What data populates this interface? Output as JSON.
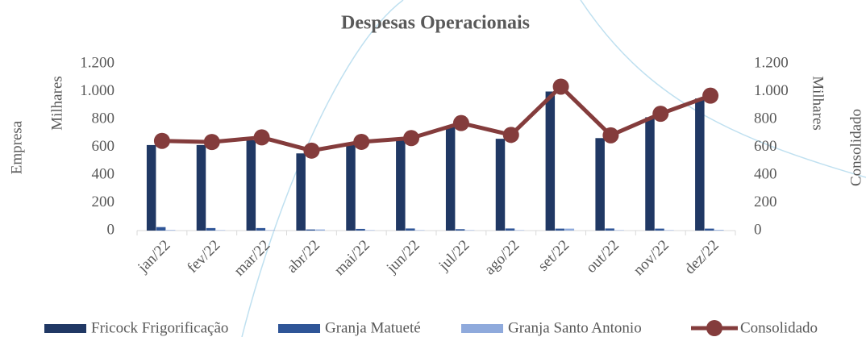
{
  "chart_data": {
    "type": "bar",
    "title": "Despesas Operacionais",
    "y_label": "Empresa",
    "y_unit": "Milhares",
    "y2_label": "Consolidado",
    "y2_unit": "Milhares",
    "categories": [
      "jan/22",
      "fev/22",
      "mar/22",
      "abr/22",
      "mai/22",
      "jun/22",
      "jul/22",
      "ago/22",
      "set/22",
      "out/22",
      "nov/22",
      "dez/22"
    ],
    "series": [
      {
        "name": "Fricock Frigorificação",
        "type": "bar",
        "color": "#203864",
        "values": [
          615,
          615,
          650,
          555,
          630,
          650,
          745,
          660,
          1000,
          665,
          815,
          950
        ]
      },
      {
        "name": "Granja Matueté",
        "type": "bar",
        "color": "#2f5597",
        "values": [
          25,
          18,
          18,
          8,
          12,
          15,
          10,
          15,
          14,
          15,
          14,
          14
        ]
      },
      {
        "name": "Granja Santo Antonio",
        "type": "bar",
        "color": "#8faadc",
        "values": [
          4,
          3,
          3,
          8,
          3,
          3,
          3,
          3,
          14,
          3,
          3,
          5
        ]
      },
      {
        "name": "Consolidado",
        "type": "line",
        "axis": "y2",
        "color": "#843c3c",
        "values": [
          645,
          637,
          670,
          575,
          638,
          665,
          773,
          688,
          1035,
          685,
          840,
          970
        ]
      }
    ],
    "ylim": [
      0,
      1200
    ],
    "yticks": [
      0,
      200,
      400,
      600,
      800,
      {
        "value": 1000,
        "label": "1.000"
      },
      {
        "value": 1200,
        "label": "1.200"
      }
    ],
    "y2lim": [
      0,
      1200
    ],
    "y2ticks": [
      0,
      200,
      400,
      600,
      800,
      {
        "value": 1000,
        "label": "1.000"
      },
      {
        "value": 1200,
        "label": "1.200"
      }
    ],
    "legend": "bottom"
  }
}
